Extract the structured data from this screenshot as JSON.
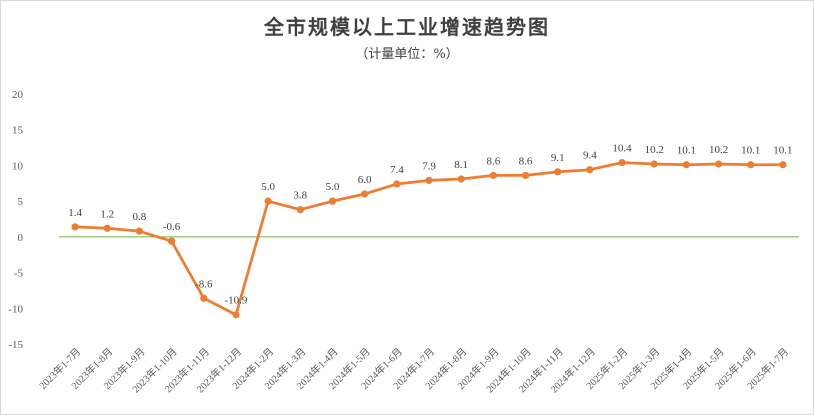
{
  "chart_data": {
    "type": "line",
    "title": "全市规模以上工业增速趋势图",
    "subtitle": "（计量单位：%）",
    "categories": [
      "2023年1-7月",
      "2023年1-8月",
      "2023年1-9月",
      "2023年1-10月",
      "2023年1-11月",
      "2023年1-12月",
      "2024年1-2月",
      "2024年1-3月",
      "2024年1-4月",
      "2024年1-5月",
      "2024年1-6月",
      "2024年1-7月",
      "2024年1-8月",
      "2024年1-9月",
      "2024年1-10月",
      "2024年1-11月",
      "2024年1-12月",
      "2025年1-2月",
      "2025年1-3月",
      "2025年1-4月",
      "2025年1-5月",
      "2025年1-6月",
      "2025年1-7月"
    ],
    "series": [
      {
        "values": [
          1.4,
          1.2,
          0.8,
          -0.6,
          -8.6,
          -10.9,
          5.0,
          3.8,
          5.0,
          6.0,
          7.4,
          7.9,
          8.1,
          8.6,
          8.6,
          9.1,
          9.4,
          10.4,
          10.2,
          10.1,
          10.2,
          10.1,
          10.1
        ],
        "labels": [
          "1.4",
          "1.2",
          "0.8",
          "-0.6",
          "-8.6",
          "-10.9",
          "5.0",
          "3.8",
          "5.0",
          "6.0",
          "7.4",
          "7.9",
          "8.1",
          "8.6",
          "8.6",
          "9.1",
          "9.4",
          "10.4",
          "10.2",
          "10.1",
          "10.2",
          "10.1",
          "10.1"
        ],
        "color": "#ed7d31"
      }
    ],
    "yticks": [
      20,
      15,
      10,
      5,
      0,
      -5,
      -10,
      -15
    ],
    "ylim": [
      -15,
      20
    ],
    "zero_line_color": "#70ad47",
    "grid": false,
    "legend": "none"
  }
}
